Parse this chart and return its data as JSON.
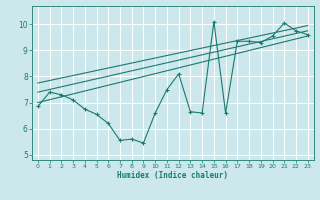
{
  "xlabel": "Humidex (Indice chaleur)",
  "bg_color": "#cce8ec",
  "grid_color": "#ffffff",
  "line_color": "#1a7a6e",
  "xlim": [
    -0.5,
    23.5
  ],
  "ylim": [
    4.8,
    10.7
  ],
  "xticks": [
    0,
    1,
    2,
    3,
    4,
    5,
    6,
    7,
    8,
    9,
    10,
    11,
    12,
    13,
    14,
    15,
    16,
    17,
    18,
    19,
    20,
    21,
    22,
    23
  ],
  "yticks": [
    5,
    6,
    7,
    8,
    9,
    10
  ],
  "data_x": [
    0,
    1,
    2,
    3,
    4,
    5,
    6,
    7,
    8,
    9,
    10,
    11,
    12,
    13,
    14,
    15,
    16,
    17,
    18,
    19,
    20,
    21,
    22,
    23
  ],
  "data_y": [
    6.85,
    7.4,
    7.3,
    7.1,
    6.75,
    6.55,
    6.2,
    5.55,
    5.6,
    5.45,
    6.6,
    7.5,
    8.1,
    6.65,
    6.6,
    10.1,
    6.6,
    9.35,
    9.35,
    9.3,
    9.55,
    10.05,
    9.75,
    9.6
  ],
  "reg_lines": [
    {
      "x": [
        0,
        23
      ],
      "y": [
        7.0,
        9.55
      ]
    },
    {
      "x": [
        0,
        23
      ],
      "y": [
        7.4,
        9.75
      ]
    },
    {
      "x": [
        0,
        23
      ],
      "y": [
        7.75,
        9.95
      ]
    }
  ]
}
